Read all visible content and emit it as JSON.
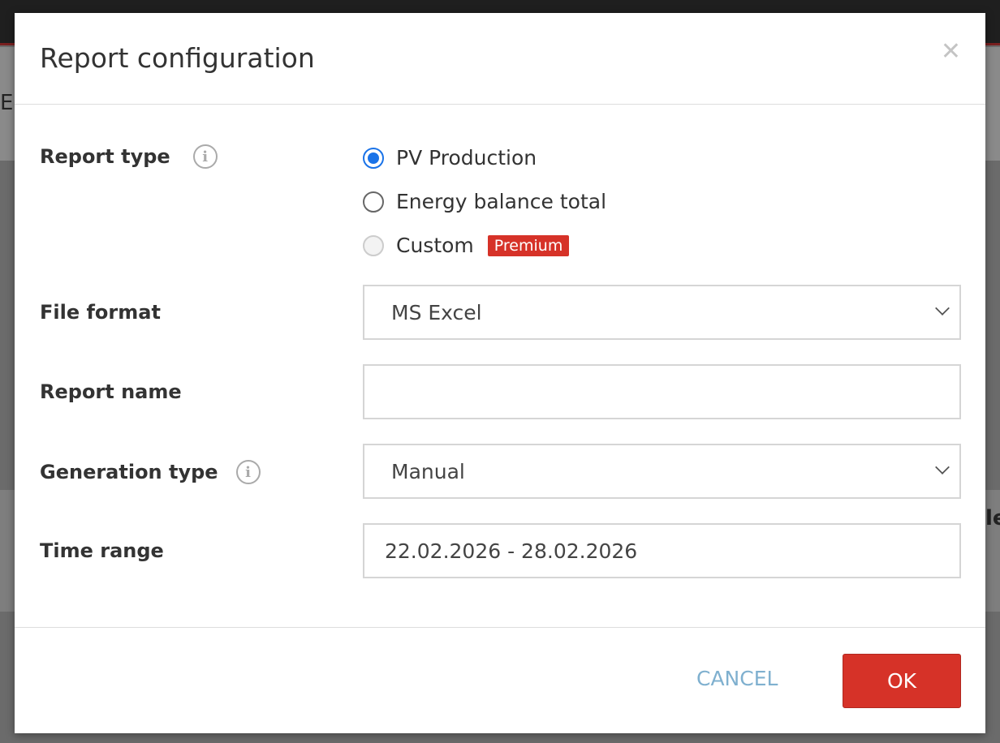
{
  "background": {
    "left_text": "E",
    "right_text": "le"
  },
  "dialog": {
    "title": "Report configuration",
    "close_icon": "close-icon",
    "report_type": {
      "label": "Report type",
      "options": [
        {
          "label": "PV Production",
          "selected": true,
          "disabled": false
        },
        {
          "label": "Energy balance total",
          "selected": false,
          "disabled": false
        },
        {
          "label": "Custom",
          "selected": false,
          "disabled": true,
          "badge": "Premium"
        }
      ]
    },
    "file_format": {
      "label": "File format",
      "value": "MS Excel"
    },
    "report_name": {
      "label": "Report name",
      "value": ""
    },
    "generation_type": {
      "label": "Generation type",
      "value": "Manual"
    },
    "time_range": {
      "label": "Time range",
      "value": "22.02.2026 - 28.02.2026"
    },
    "cancel_label": "CANCEL",
    "ok_label": "OK"
  },
  "colors": {
    "accent": "#1a73e8",
    "primary_button": "#d63228",
    "cancel_text": "#7fb0cf"
  }
}
